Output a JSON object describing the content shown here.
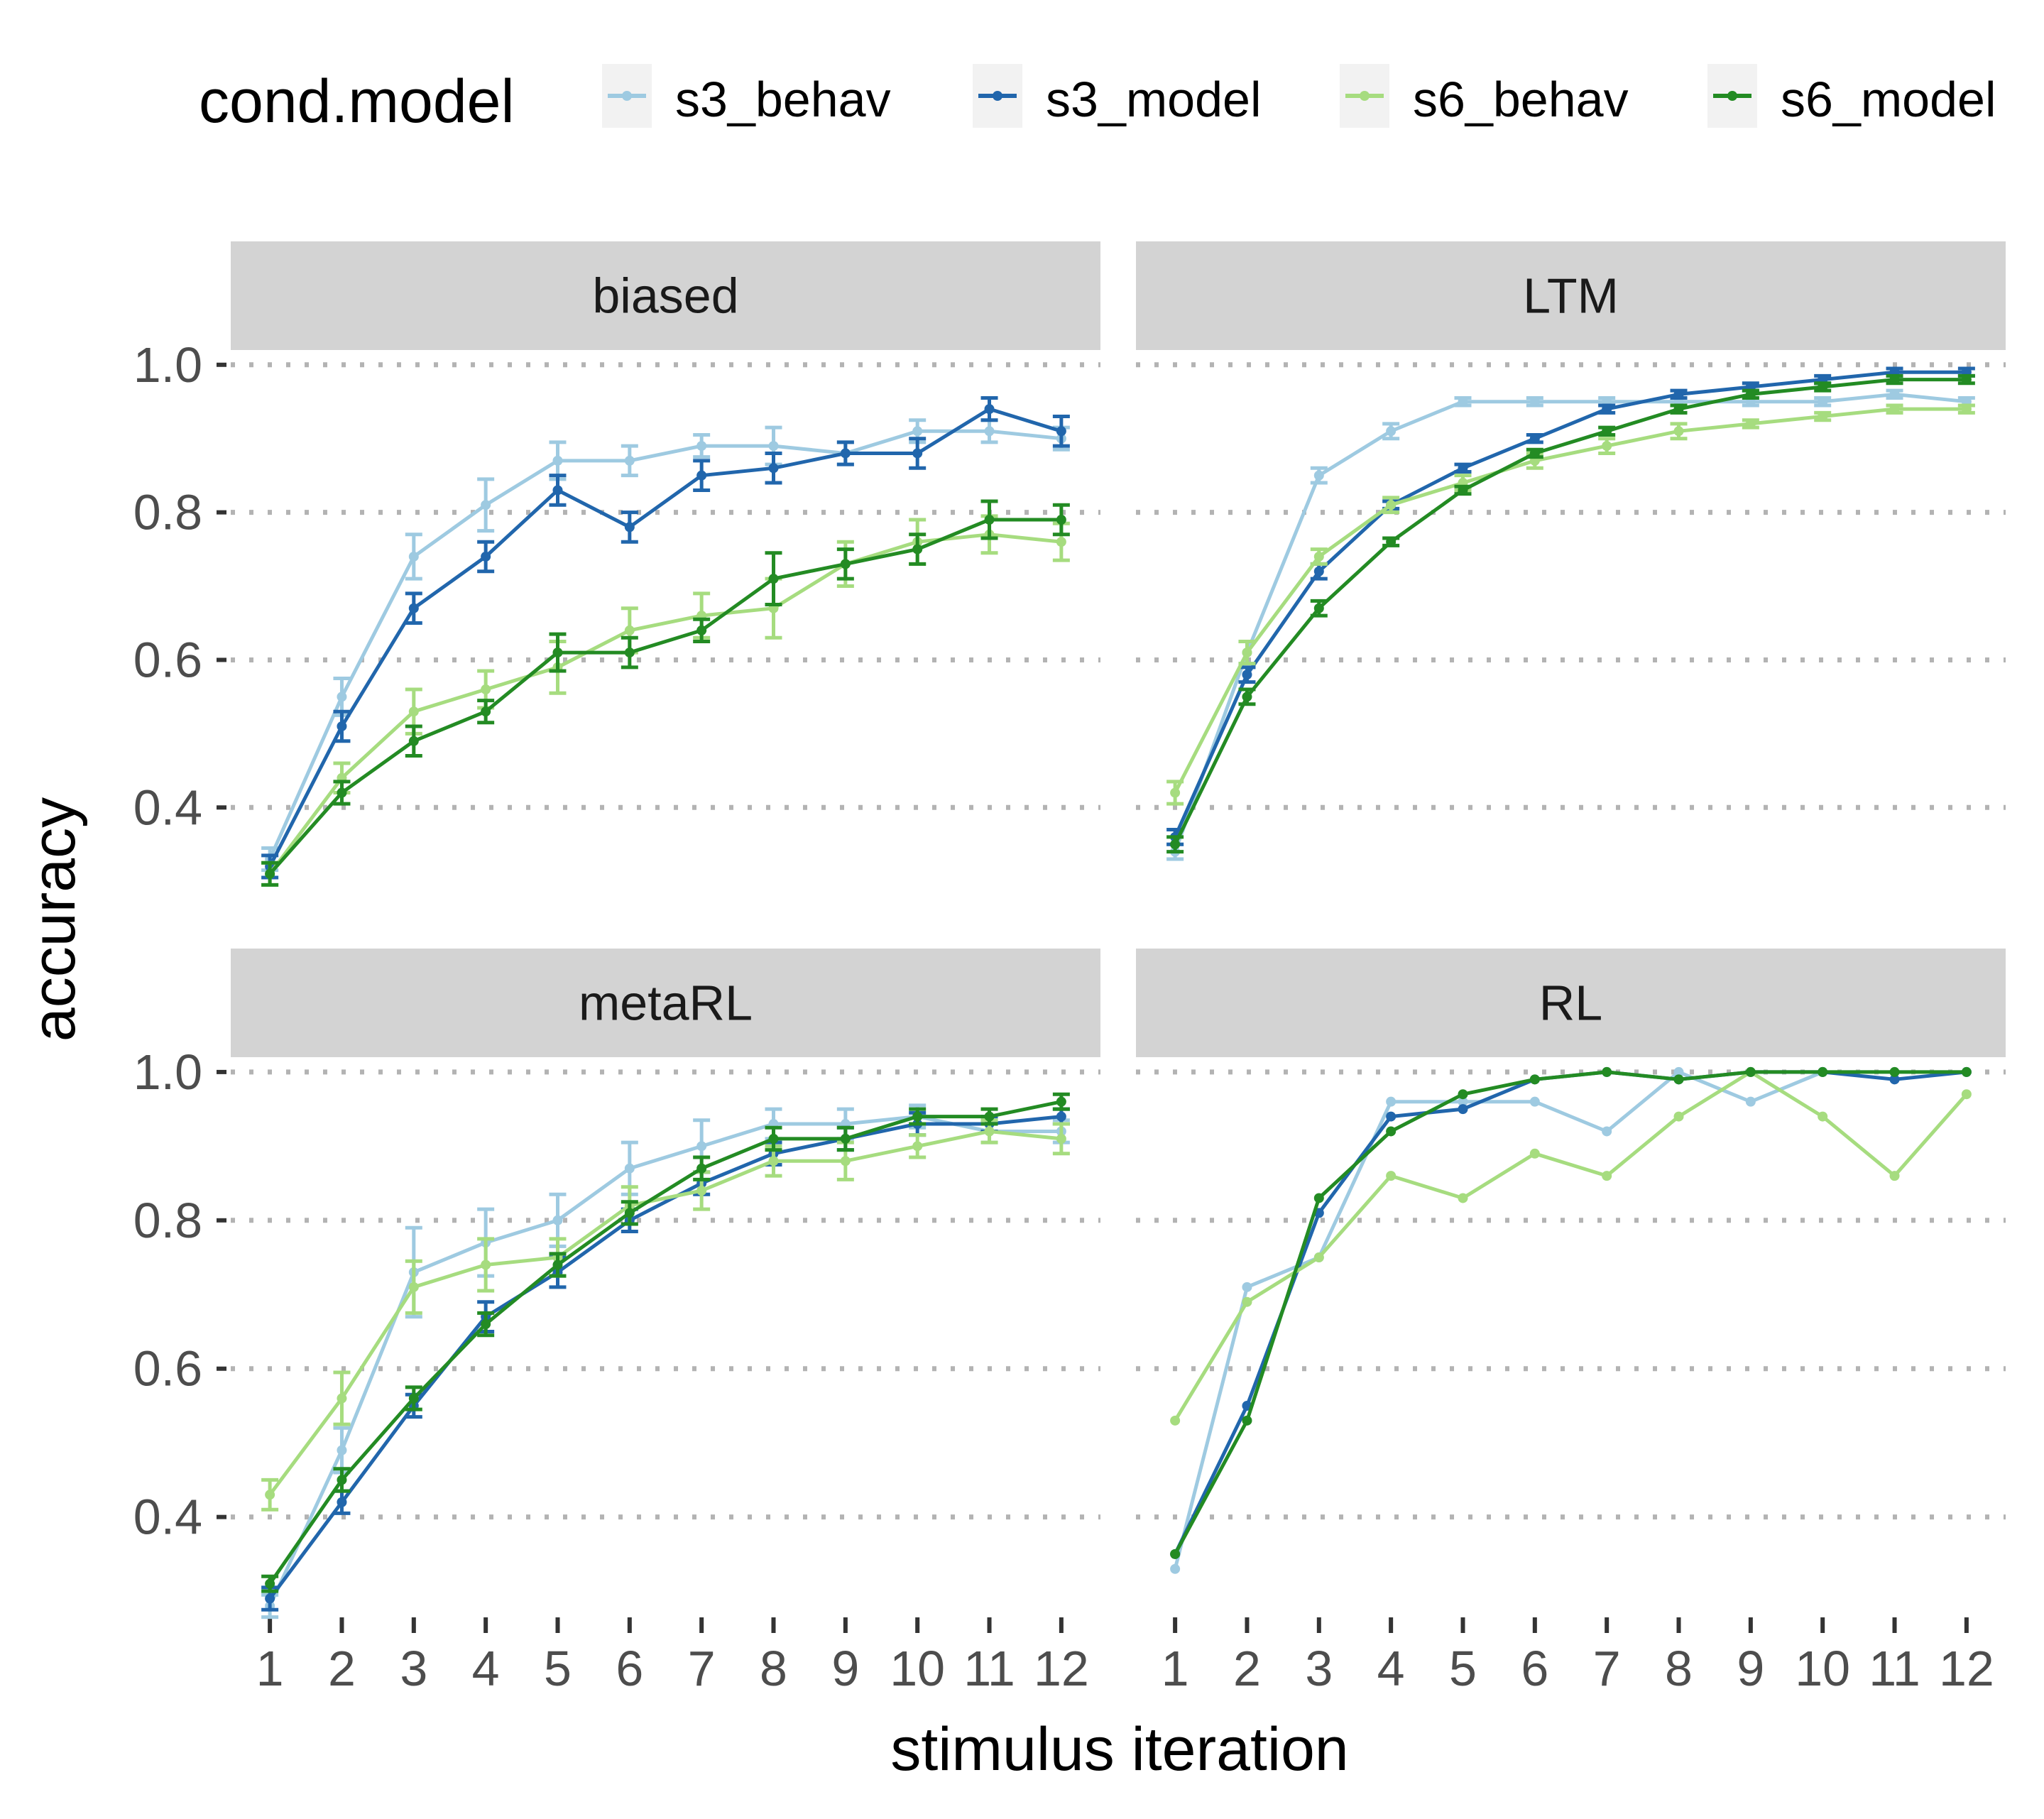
{
  "legend": {
    "title": "cond.model",
    "entries": [
      "s3_behav",
      "s3_model",
      "s6_behav",
      "s6_model"
    ]
  },
  "colors": {
    "s3_behav": "#9ecae1",
    "s3_model": "#2166ac",
    "s6_behav": "#a6dc7f",
    "s6_model": "#238b23",
    "strip": "#d3d3d3",
    "grid": "#b3b3b3",
    "tick_text": "#4d4d4d"
  },
  "chart_data": {
    "type": "line",
    "xlabel": "stimulus iteration",
    "ylabel": "accuracy",
    "x": [
      1,
      2,
      3,
      4,
      5,
      6,
      7,
      8,
      9,
      10,
      11,
      12
    ],
    "x_tick_labels": [
      "1",
      "2",
      "3",
      "4",
      "5",
      "6",
      "7",
      "8",
      "9",
      "10",
      "11",
      "12"
    ],
    "y_ticks": [
      0.4,
      0.6,
      0.8,
      1.0
    ],
    "y_tick_labels": [
      "0.4",
      "0.6",
      "0.8",
      "1.0"
    ],
    "ylim": [
      0.28,
      1.02
    ],
    "grid": "horizontal dotted",
    "legend_position": "top",
    "panels": [
      {
        "name": "biased",
        "series": [
          {
            "name": "s3_behav",
            "values": [
              0.33,
              0.55,
              0.74,
              0.81,
              0.87,
              0.87,
              0.89,
              0.89,
              0.88,
              0.91,
              0.91,
              0.9
            ],
            "err": [
              0.015,
              0.025,
              0.03,
              0.035,
              0.025,
              0.02,
              0.015,
              0.025,
              0.015,
              0.015,
              0.015,
              0.015
            ]
          },
          {
            "name": "s3_model",
            "values": [
              0.32,
              0.51,
              0.67,
              0.74,
              0.83,
              0.78,
              0.85,
              0.86,
              0.88,
              0.88,
              0.94,
              0.91
            ],
            "err": [
              0.015,
              0.02,
              0.02,
              0.02,
              0.02,
              0.02,
              0.02,
              0.02,
              0.015,
              0.02,
              0.015,
              0.02
            ]
          },
          {
            "name": "s6_behav",
            "values": [
              0.31,
              0.44,
              0.53,
              0.56,
              0.59,
              0.64,
              0.66,
              0.67,
              0.73,
              0.76,
              0.77,
              0.76
            ],
            "err": [
              0.015,
              0.02,
              0.03,
              0.025,
              0.035,
              0.03,
              0.03,
              0.04,
              0.03,
              0.03,
              0.025,
              0.025
            ]
          },
          {
            "name": "s6_model",
            "values": [
              0.31,
              0.42,
              0.49,
              0.53,
              0.61,
              0.61,
              0.64,
              0.71,
              0.73,
              0.75,
              0.79,
              0.79
            ],
            "err": [
              0.015,
              0.015,
              0.02,
              0.015,
              0.025,
              0.02,
              0.015,
              0.035,
              0.02,
              0.02,
              0.025,
              0.02
            ]
          }
        ]
      },
      {
        "name": "LTM",
        "series": [
          {
            "name": "s3_behav",
            "values": [
              0.34,
              0.61,
              0.85,
              0.91,
              0.95,
              0.95,
              0.95,
              0.95,
              0.95,
              0.95,
              0.96,
              0.95
            ],
            "err": [
              0.01,
              0.015,
              0.01,
              0.01,
              0.005,
              0.005,
              0.005,
              0.005,
              0.005,
              0.005,
              0.005,
              0.005
            ]
          },
          {
            "name": "s3_model",
            "values": [
              0.36,
              0.58,
              0.72,
              0.81,
              0.86,
              0.9,
              0.94,
              0.96,
              0.97,
              0.98,
              0.99,
              0.99
            ],
            "err": [
              0.01,
              0.01,
              0.01,
              0.005,
              0.005,
              0.005,
              0.005,
              0.005,
              0.005,
              0.005,
              0.005,
              0.005
            ]
          },
          {
            "name": "s6_behav",
            "values": [
              0.42,
              0.61,
              0.74,
              0.81,
              0.84,
              0.87,
              0.89,
              0.91,
              0.92,
              0.93,
              0.94,
              0.94
            ],
            "err": [
              0.015,
              0.015,
              0.01,
              0.01,
              0.01,
              0.01,
              0.01,
              0.01,
              0.005,
              0.005,
              0.005,
              0.005
            ]
          },
          {
            "name": "s6_model",
            "values": [
              0.35,
              0.55,
              0.67,
              0.76,
              0.83,
              0.88,
              0.91,
              0.94,
              0.96,
              0.97,
              0.98,
              0.98
            ],
            "err": [
              0.01,
              0.01,
              0.01,
              0.005,
              0.005,
              0.005,
              0.005,
              0.005,
              0.005,
              0.005,
              0.005,
              0.005
            ]
          }
        ]
      },
      {
        "name": "metaRL",
        "series": [
          {
            "name": "s3_behav",
            "values": [
              0.28,
              0.49,
              0.73,
              0.77,
              0.8,
              0.87,
              0.9,
              0.93,
              0.93,
              0.94,
              0.92,
              0.92
            ],
            "err": [
              0.015,
              0.03,
              0.06,
              0.045,
              0.035,
              0.035,
              0.035,
              0.02,
              0.02,
              0.015,
              0.015,
              0.015
            ]
          },
          {
            "name": "s3_model",
            "values": [
              0.29,
              0.42,
              0.55,
              0.67,
              0.73,
              0.8,
              0.85,
              0.89,
              0.91,
              0.93,
              0.93,
              0.94
            ],
            "err": [
              0.015,
              0.015,
              0.015,
              0.02,
              0.02,
              0.015,
              0.015,
              0.015,
              0.015,
              0.015,
              0.01,
              0.01
            ]
          },
          {
            "name": "s6_behav",
            "values": [
              0.43,
              0.56,
              0.71,
              0.74,
              0.75,
              0.82,
              0.84,
              0.88,
              0.88,
              0.9,
              0.92,
              0.91
            ],
            "err": [
              0.02,
              0.035,
              0.035,
              0.035,
              0.025,
              0.025,
              0.025,
              0.02,
              0.025,
              0.015,
              0.015,
              0.02
            ]
          },
          {
            "name": "s6_model",
            "values": [
              0.31,
              0.45,
              0.56,
              0.66,
              0.74,
              0.81,
              0.87,
              0.91,
              0.91,
              0.94,
              0.94,
              0.96
            ],
            "err": [
              0.01,
              0.015,
              0.015,
              0.015,
              0.015,
              0.015,
              0.015,
              0.015,
              0.015,
              0.01,
              0.01,
              0.01
            ]
          }
        ]
      },
      {
        "name": "RL",
        "series": [
          {
            "name": "s3_behav",
            "values": [
              0.33,
              0.71,
              0.75,
              0.96,
              0.96,
              0.96,
              0.92,
              1.0,
              0.96,
              1.0,
              1.0,
              1.0
            ],
            "err": [
              0,
              0,
              0,
              0,
              0,
              0,
              0,
              0,
              0,
              0,
              0,
              0
            ]
          },
          {
            "name": "s3_model",
            "values": [
              0.35,
              0.55,
              0.81,
              0.94,
              0.95,
              0.99,
              1.0,
              0.99,
              1.0,
              1.0,
              0.99,
              1.0
            ],
            "err": [
              0,
              0,
              0,
              0,
              0,
              0,
              0,
              0,
              0,
              0,
              0,
              0
            ]
          },
          {
            "name": "s6_behav",
            "values": [
              0.53,
              0.69,
              0.75,
              0.86,
              0.83,
              0.89,
              0.86,
              0.94,
              1.0,
              0.94,
              0.86,
              0.97
            ],
            "err": [
              0,
              0,
              0,
              0,
              0,
              0,
              0,
              0,
              0,
              0,
              0,
              0
            ]
          },
          {
            "name": "s6_model",
            "values": [
              0.35,
              0.53,
              0.83,
              0.92,
              0.97,
              0.99,
              1.0,
              0.99,
              1.0,
              1.0,
              1.0,
              1.0
            ],
            "err": [
              0,
              0,
              0,
              0,
              0,
              0,
              0,
              0,
              0,
              0,
              0,
              0
            ]
          }
        ]
      }
    ]
  }
}
